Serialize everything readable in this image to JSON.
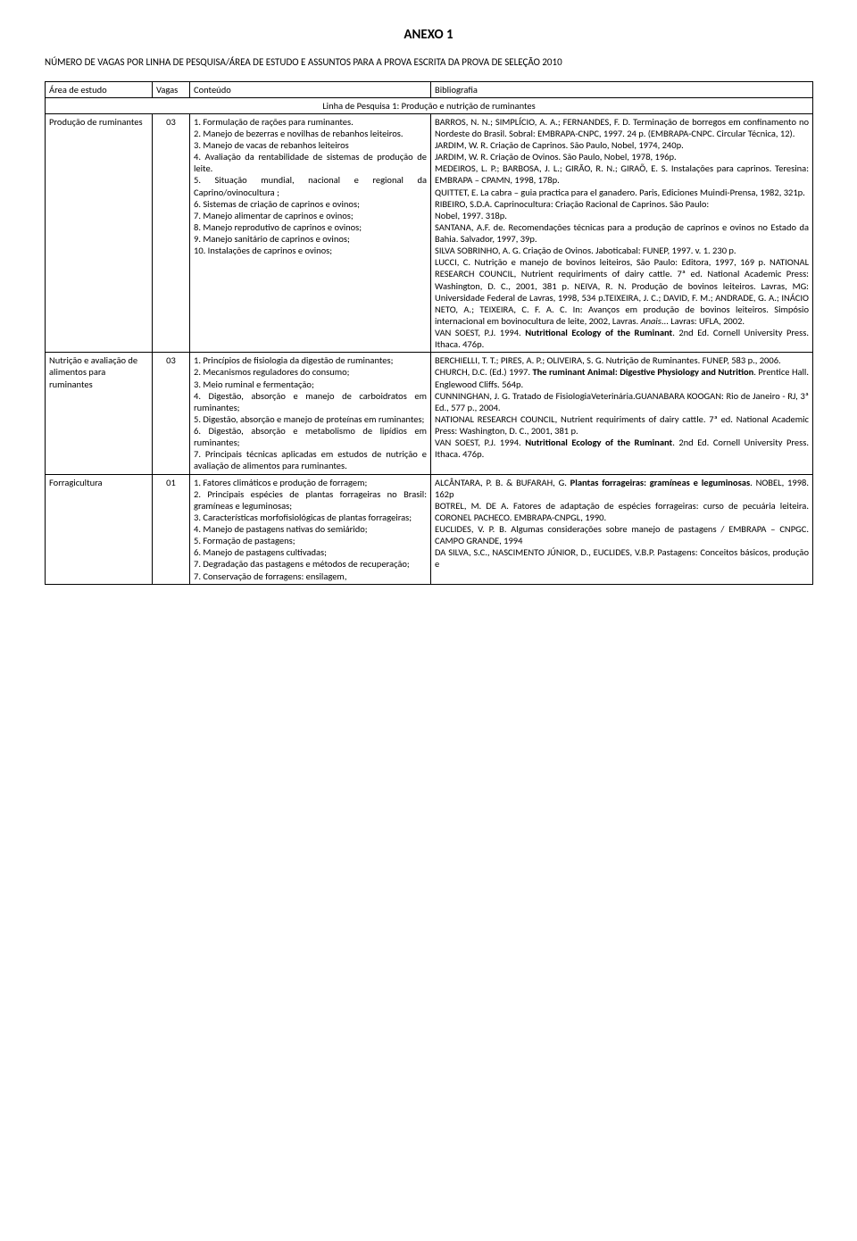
{
  "doc": {
    "title": "ANEXO 1",
    "subtitle": "NÚMERO DE VAGAS POR LINHA DE PESQUISA/ÁREA DE ESTUDO E ASSUNTOS PARA A PROVA ESCRITA DA PROVA DE SELEÇÃO 2010"
  },
  "table": {
    "headers": {
      "col1": "Área de estudo",
      "col2": "Vagas",
      "col3": "Conteúdo",
      "col4": "Bibliografia"
    },
    "section_header": "Linha de Pesquisa 1: Produção e nutrição de ruminantes",
    "rows": [
      {
        "area": "Produção de ruminantes",
        "vagas": "03",
        "conteudo": [
          "1. Formulação de rações para ruminantes.",
          "2. Manejo de bezerras e novilhas de rebanhos leiteiros.",
          "3. Manejo de vacas de rebanhos leiteiros",
          "4. Avaliação da rentabilidade de sistemas de produção de leite.",
          "5. Situação mundial, nacional e regional da Caprino/ovinocultura ;",
          "6. Sistemas de criação de caprinos e ovinos;",
          "7. Manejo alimentar de caprinos e ovinos;",
          "8. Manejo reprodutivo de caprinos e ovinos;",
          "9. Manejo sanitário de caprinos e ovinos;",
          "10. Instalações de caprinos e ovinos;"
        ],
        "bibliografia_html": "BARROS, N. N.; SIMPLÍCIO, A. A.; FERNANDES, F. D. Terminação de borregos em confinamento no Nordeste do Brasil. Sobral: EMBRAPA-CNPC, 1997. 24 p. (EMBRAPA-CNPC. Circular Técnica, 12).<br>JARDIM, W. R. Criação de Caprinos. São Paulo, Nobel, 1974, 240p.<br>JARDIM, W. R. Criação de Ovinos. São Paulo, Nobel, 1978, 196p.<br>MEDEIROS, L. P.; BARBOSA, J. L.; GIRÃO, R. N.; GIRAÕ, E. S. Instalações para caprinos. Teresina: EMBRAPA – CPAMN, 1998, 178p.<br>QUITTET, E. La cabra – guia practica para el ganadero. Paris, Ediciones Muindi-Prensa, 1982, 321p.<br>RIBEIRO, S.D.A. Caprinocultura: Criação Racional de Caprinos. São Paulo:<br>Nobel, 1997. 318p.<br>SANTANA, A.F. de. Recomendações técnicas para a produção de caprinos e ovinos no Estado da Bahia. Salvador, 1997, 39p.<br>SILVA SOBRINHO, A. G. Criação de Ovinos. Jaboticabal: FUNEP, 1997. v. 1. 230 p.<br>LUCCI, C. Nutrição e manejo de bovinos leiteiros, São Paulo: Editora, 1997, 169 p. NATIONAL RESEARCH COUNCIL, Nutrient requiriments of dairy cattle. 7ª ed. National Academic Press: Washington, D. C., 2001, 381 p. NEIVA, R. N. Produção de bovinos leiteiros. Lavras, MG: Universidade Federal de Lavras, 1998, 534 p.TEIXEIRA, J. C.; DAVID, F. M.; ANDRADE, G. A.; INÁCIO NETO, A.; TEIXEIRA, C. F. A. C. In: Avanços em produção de bovinos leiteiros. Simpósio internacional em bovinocultura de leite, 2002, Lavras. <span class=\"italic\">Anais</span>... Lavras: UFLA, 2002.<br>VAN SOEST, P.J. 1994. <span class=\"bold\">Nutritional Ecology of the Ruminant</span>. 2nd Ed. Cornell University Press. Ithaca. 476p."
      },
      {
        "area": "Nutrição e avaliação de alimentos para ruminantes",
        "vagas": "03",
        "conteudo": [
          "1. Princípios de fisiologia da digestão de ruminantes;",
          "2. Mecanismos reguladores do consumo;",
          "3. Meio ruminal e fermentação;",
          "4. Digestão, absorção e manejo de carboidratos em ruminantes;",
          "5. Digestão, absorção e manejo de proteínas em ruminantes;",
          "6. Digestão, absorção e metabolismo de lipídios em ruminantes;",
          "7. Principais técnicas aplicadas em estudos de nutrição e avaliação de alimentos para ruminantes."
        ],
        "bibliografia_html": "BERCHIELLI, T. T.; PIRES, A. P.; OLIVEIRA, S. G. Nutrição de Ruminantes. FUNEP, 583 p., 2006.<br>CHURCH, D.C. (Ed.) 1997. <span class=\"bold\">The ruminant Animal: Digestive Physiology and Nutrition</span>. Prentice Hall. Englewood Cliffs. 564p.<br>CUNNINGHAN, J. G. Tratado de FisiologiaVeterinária.GUANABARA KOOGAN: Rio de Janeiro - RJ, 3ª Ed., 577 p., 2004.<br>NATIONAL RESEARCH COUNCIL, Nutrient requiriments of dairy cattle. 7ª ed. National Academic Press: Washington, D. C., 2001, 381 p.<br>VAN SOEST, P.J. 1994. <span class=\"bold\">Nutritional Ecology of the Ruminant</span>. 2nd Ed. Cornell University Press. Ithaca. 476p."
      },
      {
        "area": "Forragicultura",
        "vagas": "01",
        "conteudo": [
          "1. Fatores climáticos e produção de forragem;",
          "2. Principais espécies de plantas forrageiras no Brasil: gramíneas e leguminosas;",
          "3. Características morfofisiológicas de plantas forrageiras;",
          "4. Manejo de pastagens nativas do semiárido;",
          "5. Formação de pastagens;",
          "6. Manejo de pastagens cultivadas;",
          "7. Degradação das pastagens e métodos de recuperação;",
          "7. Conservação de forragens: ensilagem,"
        ],
        "bibliografia_html": "ALCÂNTARA, P. B. & BUFARAH, G. <span class=\"bold\">Plantas forrageiras: gramíneas e leguminosas</span>. NOBEL, 1998. 162p<br>BOTREL, M. DE A. Fatores de adaptação de espécies forrageiras: curso de pecuária leiteira. CORONEL PACHECO. EMBRAPA-CNPGL, 1990.<br>EUCLIDES, V. P. B. Algumas considerações sobre manejo de pastagens / EMBRAPA – CNPGC. CAMPO GRANDE, 1994<br>DA SILVA, S.C., NASCIMENTO JÚNIOR, D., EUCLIDES, V.B.P. Pastagens: Conceitos básicos, produção e"
      }
    ]
  }
}
